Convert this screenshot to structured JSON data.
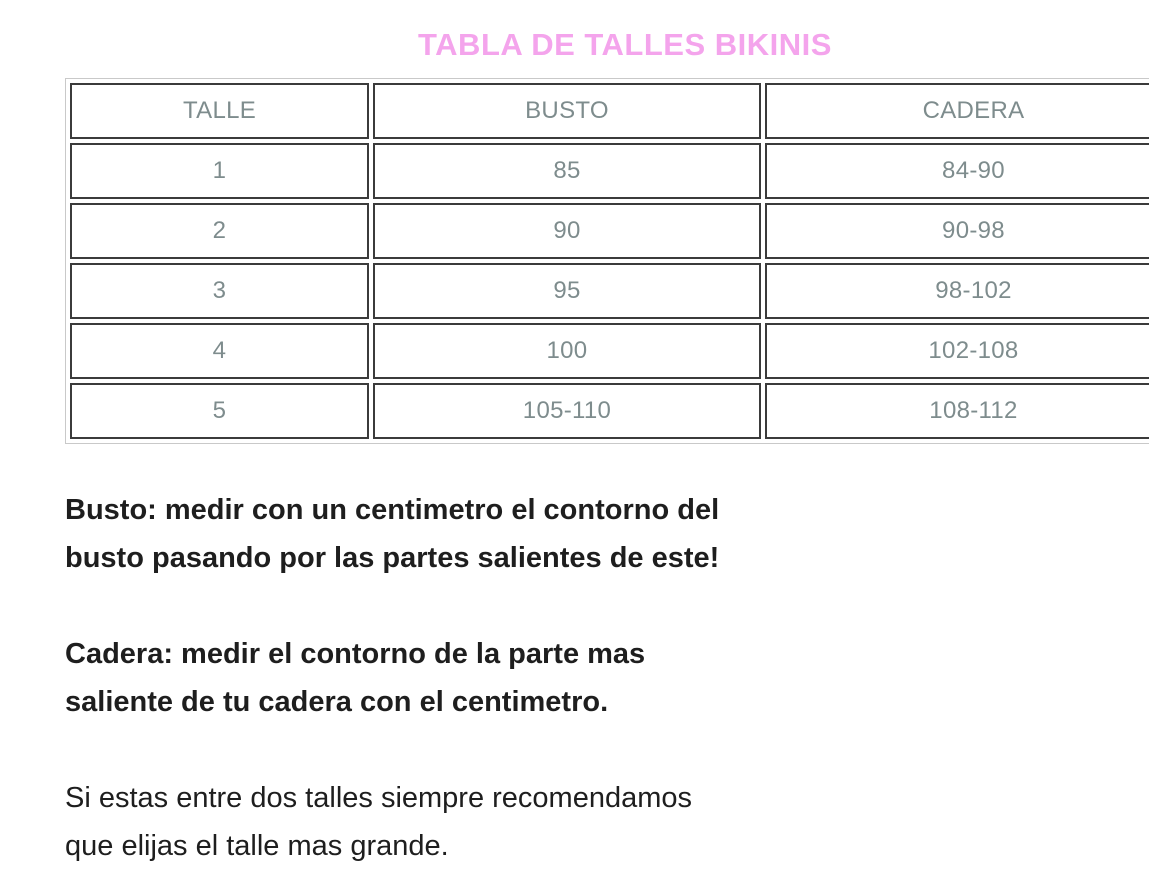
{
  "title": "TABLA DE TALLES BIKINIS",
  "size_chart": {
    "headers": [
      "TALLE",
      "BUSTO",
      "CADERA"
    ],
    "rows": [
      [
        "1",
        "85",
        "84-90"
      ],
      [
        "2",
        "90",
        "90-98"
      ],
      [
        "3",
        "95",
        "98-102"
      ],
      [
        "4",
        "100",
        "102-108"
      ],
      [
        "5",
        "105-110",
        "108-112"
      ]
    ]
  },
  "notes": [
    {
      "emphasis": "bold",
      "lines": [
        "Busto: medir con un centimetro el contorno del",
        "busto pasando por las partes salientes de este!"
      ]
    },
    {
      "emphasis": "bold",
      "lines": [
        "Cadera: medir el contorno de la parte mas",
        "saliente de tu cadera con el centimetro."
      ]
    },
    {
      "emphasis": "regular",
      "lines": [
        "Si estas entre dos talles siempre recomendamos",
        "que elijas el talle mas grande."
      ]
    }
  ],
  "colors": {
    "title_pink": "#f4a4ec",
    "table_text": "#7e8c8d",
    "cell_border": "#3b3b3b",
    "table_outer_border": "#c9c9c9",
    "body_text": "#1e1e1e"
  }
}
